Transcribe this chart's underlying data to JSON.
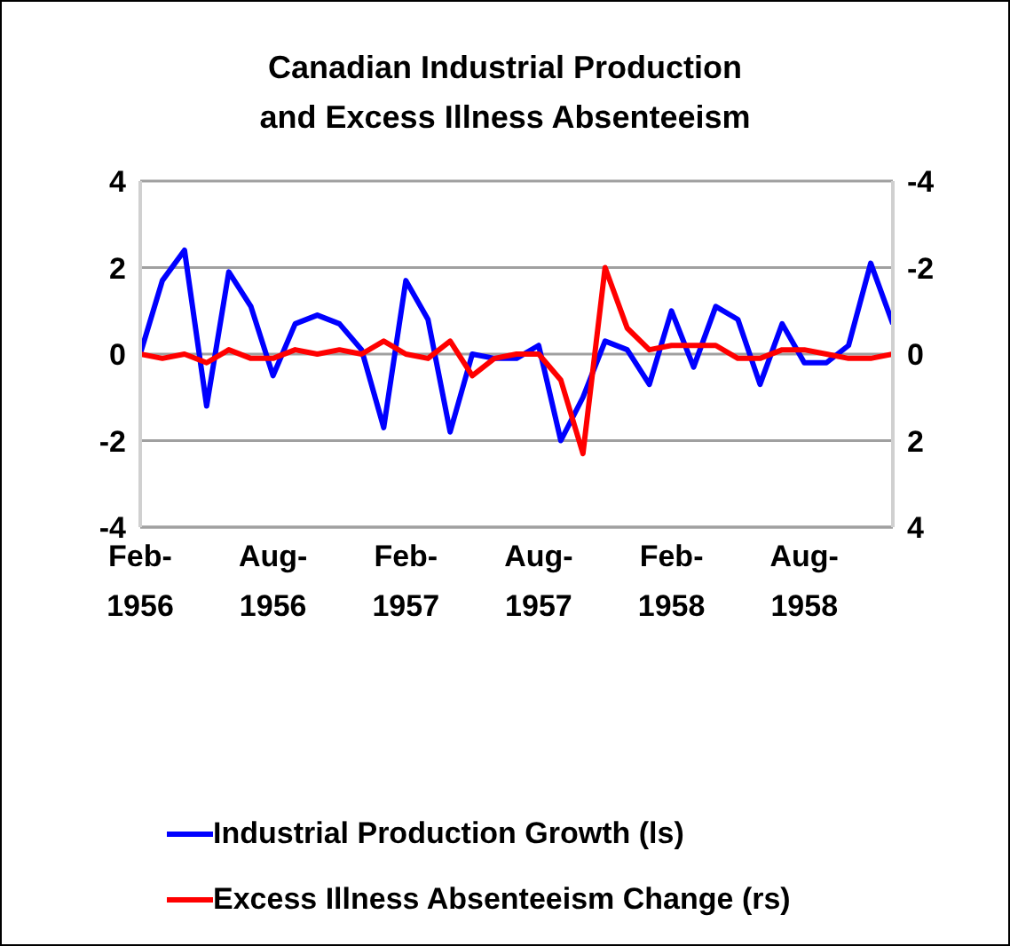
{
  "chart_data": {
    "type": "line",
    "title": "Canadian Industrial Production and Excess Illness Absenteeism",
    "categories": [
      "Feb-1956",
      null,
      null,
      null,
      null,
      null,
      "Aug-1956",
      null,
      null,
      null,
      null,
      null,
      "Feb-1957",
      null,
      null,
      null,
      null,
      null,
      "Aug-1957",
      null,
      null,
      null,
      null,
      null,
      "Feb-1958",
      null,
      null,
      null,
      null,
      null,
      "Aug-1958",
      null,
      null,
      null,
      null
    ],
    "series": [
      {
        "name": "Industrial Production Growth (ls)",
        "color": "#0000ff",
        "values": [
          0,
          1.7,
          2.4,
          -1.2,
          1.9,
          1.1,
          -0.5,
          0.7,
          0.9,
          0.7,
          0.1,
          -1.7,
          1.7,
          0.8,
          -1.8,
          0,
          -0.1,
          -0.1,
          0.2,
          -2.0,
          -1.0,
          0.3,
          0.1,
          -0.7,
          1.0,
          -0.3,
          1.1,
          0.8,
          -0.7,
          0.7,
          -0.2,
          -0.2,
          0.2,
          2.1,
          0.7
        ]
      },
      {
        "name": "Excess Illness Absenteeism Change (rs)",
        "color": "#ff0000",
        "axis": "y2",
        "values": [
          0,
          0.1,
          0,
          0.2,
          -0.1,
          0.1,
          0.1,
          -0.1,
          0,
          -0.1,
          0,
          -0.3,
          0,
          0.1,
          -0.3,
          0.5,
          0.1,
          0,
          0,
          0.6,
          2.3,
          -2.0,
          -0.6,
          -0.1,
          -0.2,
          -0.2,
          -0.2,
          0.1,
          0.1,
          -0.1,
          -0.1,
          0,
          0.1,
          0.1,
          0
        ]
      }
    ],
    "ylim": [
      -4,
      4
    ],
    "yticks": [
      -4,
      -2,
      0,
      2,
      4
    ],
    "y2lim": [
      4,
      -4
    ],
    "y2ticks": [
      4,
      2,
      0,
      -2,
      -4
    ],
    "grid": "y",
    "legend": "bottom",
    "marker": "none",
    "line_style": "solid"
  }
}
